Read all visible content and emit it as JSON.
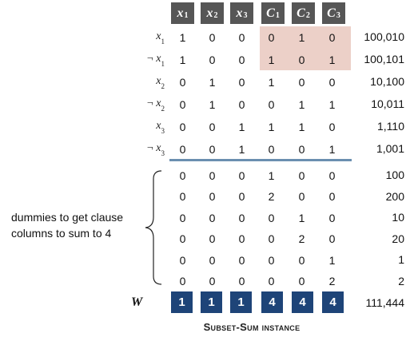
{
  "header": [
    {
      "main": "x",
      "sub": "1"
    },
    {
      "main": "x",
      "sub": "2"
    },
    {
      "main": "x",
      "sub": "3"
    },
    {
      "main": "C",
      "sub": "1"
    },
    {
      "main": "C",
      "sub": "2"
    },
    {
      "main": "C",
      "sub": "3"
    }
  ],
  "rows": [
    {
      "label": {
        "neg": "",
        "main": "x",
        "sub": "1"
      },
      "cells": [
        "1",
        "0",
        "0",
        "0",
        "1",
        "0"
      ],
      "total": "100,010"
    },
    {
      "label": {
        "neg": "¬ ",
        "main": "x",
        "sub": "1"
      },
      "cells": [
        "1",
        "0",
        "0",
        "1",
        "0",
        "1"
      ],
      "total": "100,101"
    },
    {
      "label": {
        "neg": "",
        "main": "x",
        "sub": "2"
      },
      "cells": [
        "0",
        "1",
        "0",
        "1",
        "0",
        "0"
      ],
      "total": "10,100"
    },
    {
      "label": {
        "neg": "¬ ",
        "main": "x",
        "sub": "2"
      },
      "cells": [
        "0",
        "1",
        "0",
        "0",
        "1",
        "1"
      ],
      "total": "10,011"
    },
    {
      "label": {
        "neg": "",
        "main": "x",
        "sub": "3"
      },
      "cells": [
        "0",
        "0",
        "1",
        "1",
        "1",
        "0"
      ],
      "total": "1,110"
    },
    {
      "label": {
        "neg": "¬ ",
        "main": "x",
        "sub": "3"
      },
      "cells": [
        "0",
        "0",
        "1",
        "0",
        "0",
        "1"
      ],
      "total": "1,001"
    },
    {
      "label": null,
      "cells": [
        "0",
        "0",
        "0",
        "1",
        "0",
        "0"
      ],
      "total": "100"
    },
    {
      "label": null,
      "cells": [
        "0",
        "0",
        "0",
        "2",
        "0",
        "0"
      ],
      "total": "200"
    },
    {
      "label": null,
      "cells": [
        "0",
        "0",
        "0",
        "0",
        "1",
        "0"
      ],
      "total": "10"
    },
    {
      "label": null,
      "cells": [
        "0",
        "0",
        "0",
        "0",
        "2",
        "0"
      ],
      "total": "20"
    },
    {
      "label": null,
      "cells": [
        "0",
        "0",
        "0",
        "0",
        "0",
        "1"
      ],
      "total": "1"
    },
    {
      "label": null,
      "cells": [
        "0",
        "0",
        "0",
        "0",
        "0",
        "2"
      ],
      "total": "2"
    }
  ],
  "dummies_note": "dummies to get clause columns to sum to 4",
  "w_row": {
    "label": "W",
    "cells": [
      "1",
      "1",
      "1",
      "4",
      "4",
      "4"
    ],
    "total": "111,444"
  },
  "caption": "Subset-Sum instance",
  "colors": {
    "header_bg": "#565656",
    "highlight": "#ecd0c8",
    "separator": "#6b8fb0",
    "w_row_bg": "#1e4478"
  }
}
